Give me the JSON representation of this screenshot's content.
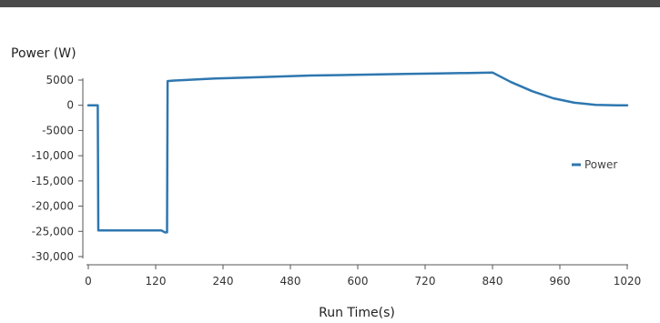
{
  "chart_data": {
    "type": "line",
    "ylabel": "Power (W)",
    "xlabel": "Run Time(s)",
    "xlim": [
      0,
      1020
    ],
    "ylim": [
      -30000,
      5000
    ],
    "x_ticks": [
      0,
      120,
      240,
      480,
      600,
      720,
      840,
      960,
      1020
    ],
    "x_tick_labels": [
      "0",
      "120",
      "240",
      "480",
      "600",
      "720",
      "840",
      "960",
      "1020"
    ],
    "y_ticks": [
      5000,
      0,
      -5000,
      -10000,
      -15000,
      -20000,
      -25000,
      -30000
    ],
    "y_tick_labels": [
      "5000",
      "0",
      "-5000",
      "-10,000",
      "-15,000",
      "-20,000",
      "-25,000",
      "-30,000"
    ],
    "legend_position": "right",
    "colors": {
      "series": "#2e77b0",
      "axis": "#555555"
    },
    "series": [
      {
        "name": "Power",
        "x": [
          0,
          18,
          19,
          20,
          135,
          138,
          145,
          149,
          150,
          160,
          240,
          300,
          360,
          420,
          480,
          540,
          600,
          660,
          720,
          765,
          800,
          840,
          880,
          920,
          960,
          1000,
          1020
        ],
        "y": [
          0,
          0,
          -24800,
          -24800,
          -24800,
          -24800,
          -25200,
          -25200,
          4800,
          4900,
          5300,
          5500,
          5700,
          5900,
          6000,
          6100,
          6200,
          6300,
          6400,
          6500,
          4600,
          2800,
          1400,
          500,
          100,
          0,
          0
        ]
      }
    ]
  }
}
